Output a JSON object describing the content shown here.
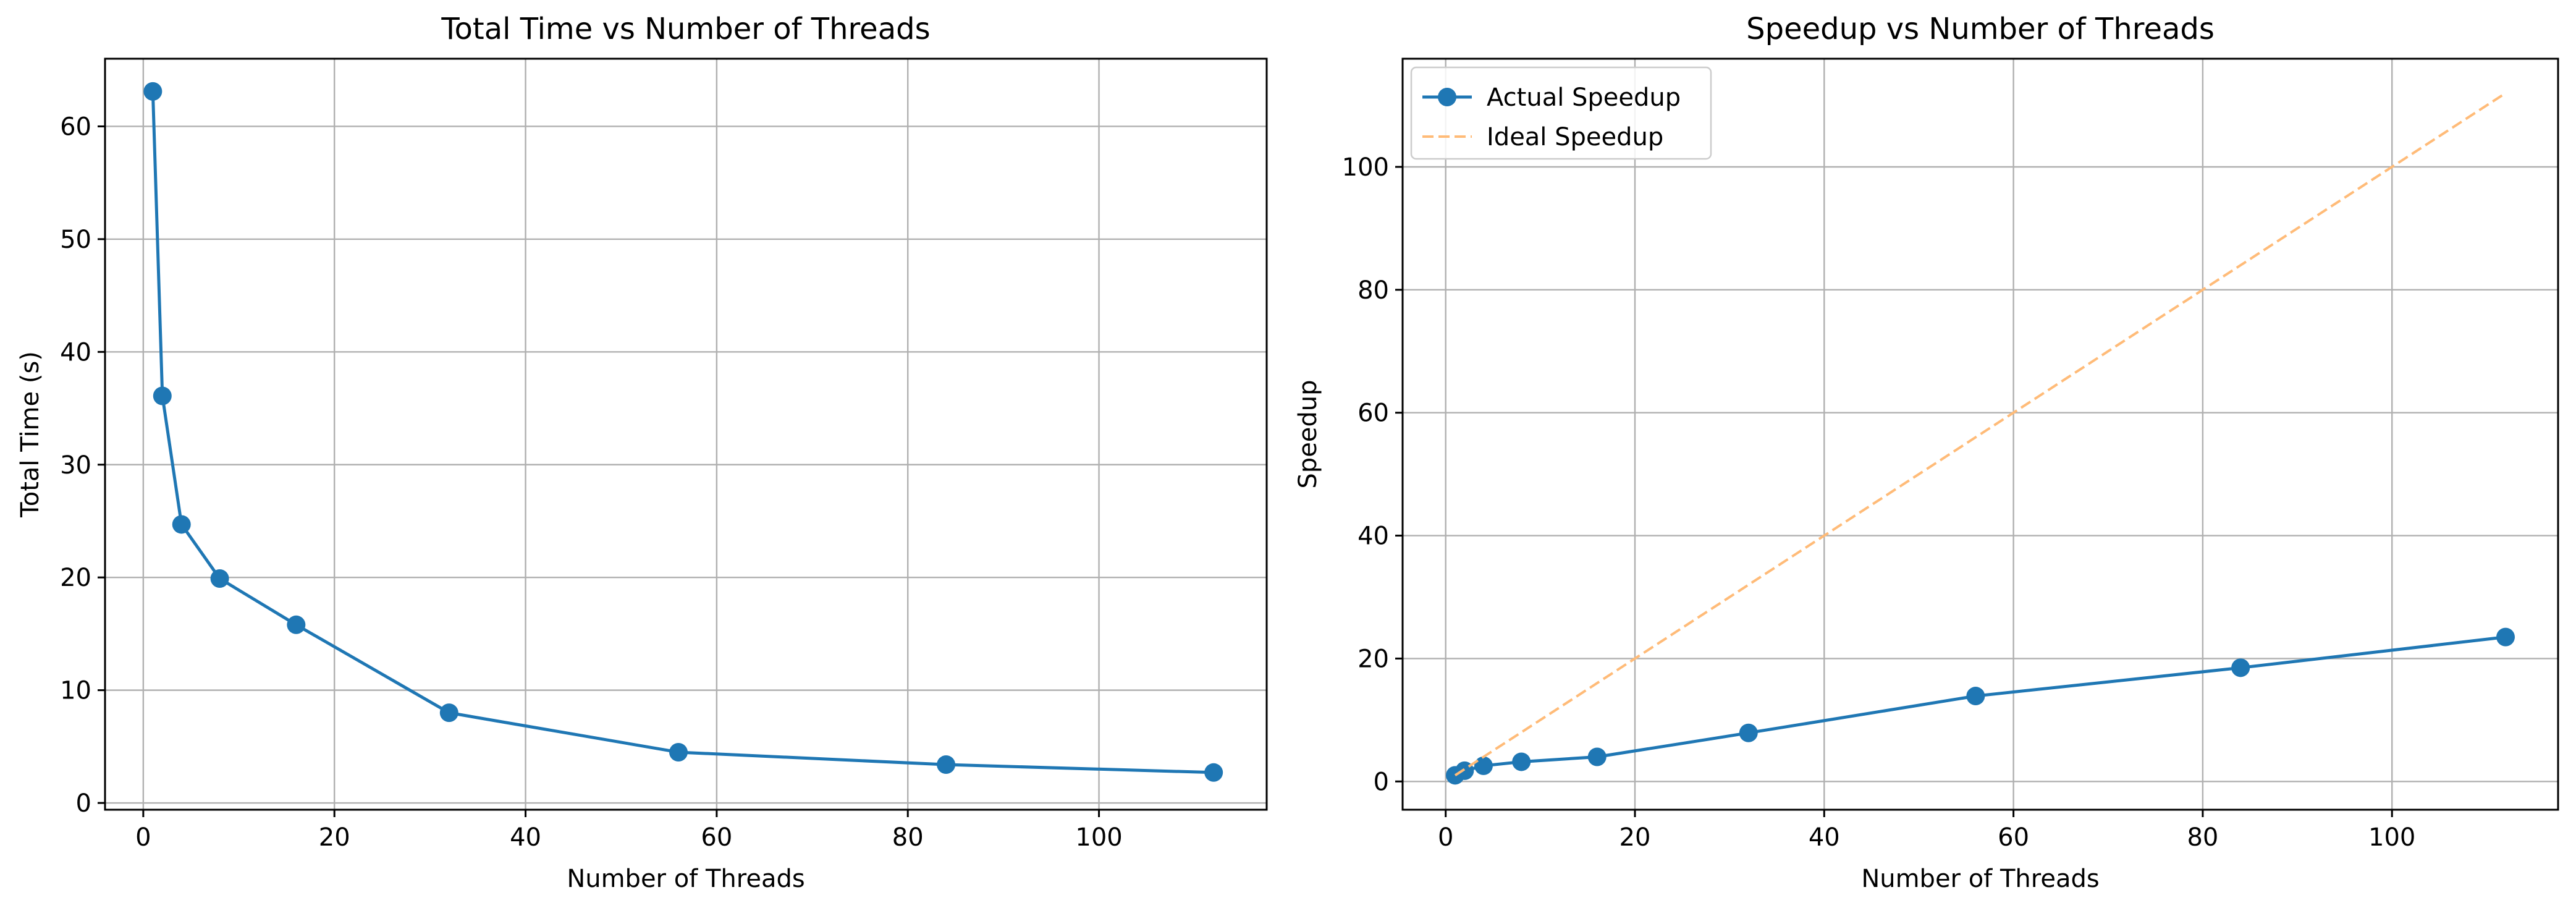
{
  "chart_data": [
    {
      "type": "line",
      "title": "Total Time vs Number of Threads",
      "xlabel": "Number of Threads",
      "ylabel": "Total Time (s)",
      "xlim": [
        -4,
        117.55
      ],
      "ylim": [
        -0.6,
        66.0
      ],
      "xticks": [
        0,
        20,
        40,
        60,
        80,
        100
      ],
      "yticks": [
        0,
        10,
        20,
        30,
        40,
        50,
        60
      ],
      "grid": true,
      "colors": {
        "series": "#1f77b4",
        "grid": "#b0b0b0"
      },
      "series": [
        {
          "marker": "circle",
          "x": [
            1,
            2,
            4,
            8,
            16,
            32,
            56,
            84,
            112
          ],
          "y": [
            63.1,
            36.1,
            24.7,
            19.9,
            15.8,
            8.0,
            4.5,
            3.4,
            2.7
          ]
        }
      ]
    },
    {
      "type": "line",
      "title": "Speedup vs Number of Threads",
      "xlabel": "Number of Threads",
      "ylabel": "Speedup",
      "xlim": [
        -4.55,
        117.55
      ],
      "ylim": [
        -4.6,
        117.6
      ],
      "xticks": [
        0,
        20,
        40,
        60,
        80,
        100
      ],
      "yticks": [
        0,
        20,
        40,
        60,
        80,
        100
      ],
      "grid": true,
      "legend": "top-left",
      "colors": {
        "actual": "#1f77b4",
        "ideal": "#ffbb78",
        "grid": "#b0b0b0"
      },
      "series": [
        {
          "name": "Actual Speedup",
          "marker": "circle",
          "line": "solid",
          "x": [
            1,
            2,
            4,
            8,
            16,
            32,
            56,
            84,
            112
          ],
          "y": [
            1.0,
            1.75,
            2.55,
            3.2,
            4.0,
            7.9,
            13.9,
            18.5,
            23.5
          ]
        },
        {
          "name": "Ideal Speedup",
          "marker": "none",
          "line": "dashed",
          "x": [
            1,
            2,
            4,
            8,
            16,
            32,
            56,
            84,
            112
          ],
          "y": [
            1,
            2,
            4,
            8,
            16,
            32,
            56,
            84,
            112
          ]
        }
      ]
    }
  ]
}
